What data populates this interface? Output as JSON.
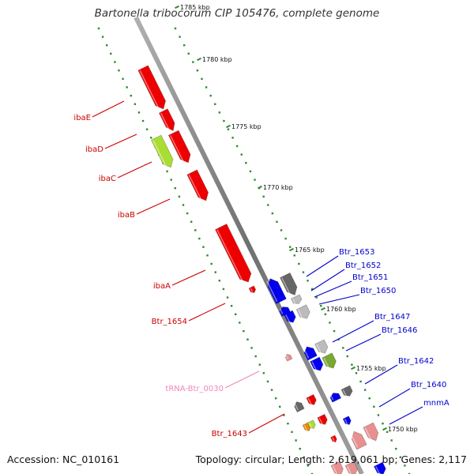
{
  "title": "Bartonella tribocorum CIP 105476, complete genome",
  "footer": {
    "accession": "Accession: NC_010161",
    "topology": "Topology: circular; Length: 2,619,061 bp; Genes: 2,117"
  },
  "colors": {
    "backbone": "#808080",
    "tick": "#2e8b2e",
    "label_left": "#cc0000",
    "label_right": "#0000cc",
    "label_trna": "#ee88bb",
    "gene_red": "#ee0000",
    "gene_blue": "#0000ee",
    "gene_gray": "#666666",
    "gene_lightgray": "#bbbbbb",
    "gene_green": "#7aa832",
    "gene_lime": "#aadd33",
    "gene_pink": "#e89090",
    "gene_orange": "#ee8800"
  },
  "scale_labels": [
    "1785 kbp",
    "1780 kbp",
    "1775 kbp",
    "1770 kbp",
    "1765 kbp",
    "1760 kbp",
    "1755 kbp",
    "1750 kbp"
  ],
  "left_labels": [
    "ibaE",
    "ibaD",
    "ibaC",
    "ibaB",
    "ibaA",
    "Btr_1654",
    "tRNA-Btr_0030",
    "Btr_1643"
  ],
  "right_labels": [
    "Btr_1653",
    "Btr_1652",
    "Btr_1651",
    "Btr_1650",
    "Btr_1647",
    "Btr_1646",
    "Btr_1642",
    "Btr_1640",
    "mnmA"
  ]
}
